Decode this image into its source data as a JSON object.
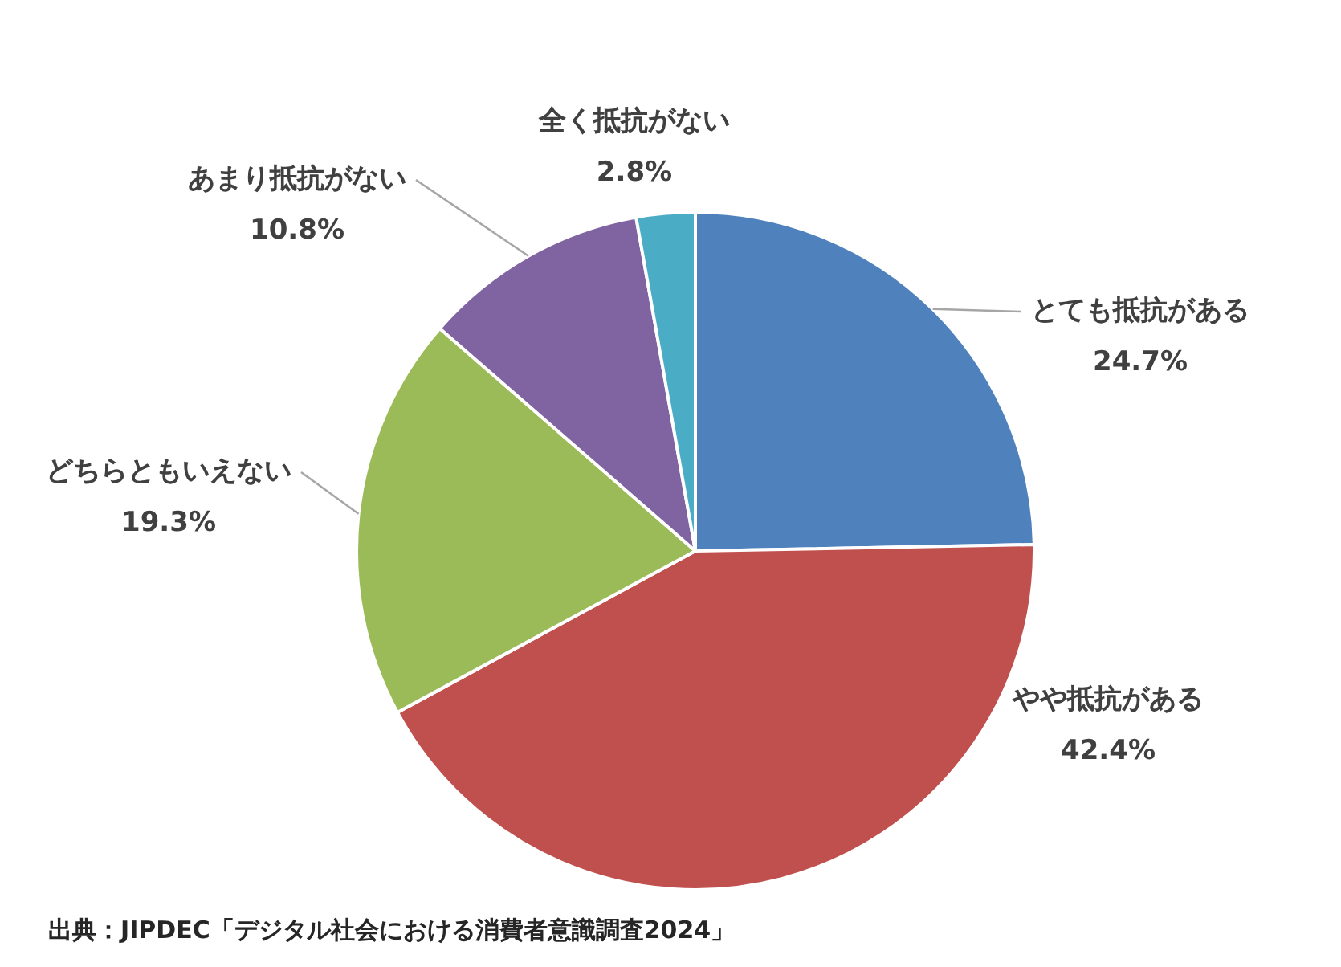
{
  "chart_data": {
    "type": "pie",
    "categories": [
      "とても抵抗がある",
      "やや抵抗がある",
      "どちらともいえない",
      "あまり抵抗がない",
      "全く抵抗がない"
    ],
    "values": [
      24.7,
      42.4,
      19.3,
      10.8,
      2.8
    ],
    "value_labels": [
      "24.7%",
      "42.4%",
      "19.3%",
      "10.8%",
      "2.8%"
    ],
    "colors": [
      "#4f81bd",
      "#c0504d",
      "#9bbb59",
      "#8064a2",
      "#4bacc6"
    ],
    "legend": false,
    "annotations": [
      "出典：JIPDEC「デジタル社会における消費者意識調査2024」"
    ]
  }
}
